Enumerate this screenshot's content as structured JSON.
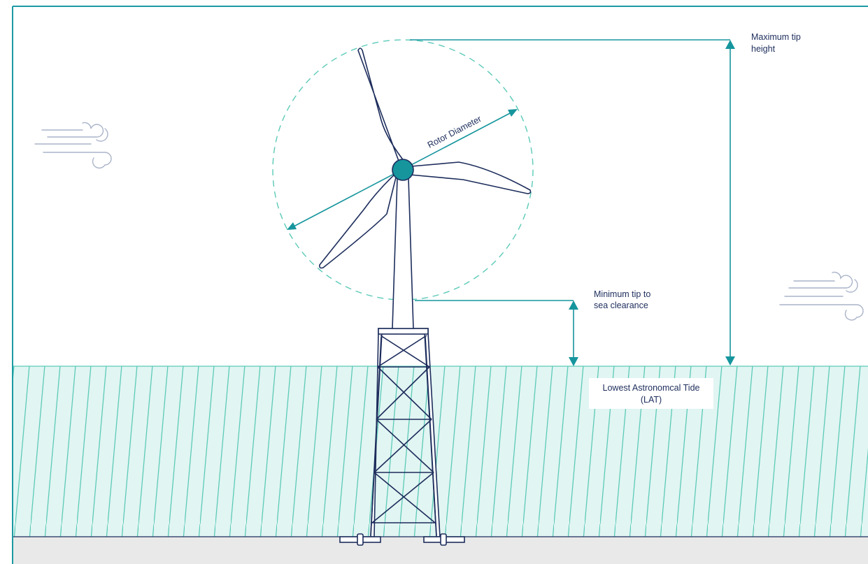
{
  "labels": {
    "rotor_diameter": "Rotor Diameter",
    "max_tip_line1": "Maximum tip",
    "max_tip_line2": "height",
    "min_tip_line1": "Minimum tip to",
    "min_tip_line2": "sea clearance",
    "lat_line1": "Lowest Astronomcal Tide",
    "lat_line2": "(LAT)"
  },
  "colors": {
    "frame": "#1b9aa3",
    "teal": "#16959d",
    "navy": "#1d2d5c",
    "sea_fill": "#e1f5f2",
    "sea_hatch": "#5ccab8",
    "seabed": "#e9e9e9",
    "rotor_circle": "#5ccab8",
    "wind": "#a9b3c8"
  },
  "icons": [
    "wind-gust-icon-left",
    "wind-gust-icon-right"
  ]
}
